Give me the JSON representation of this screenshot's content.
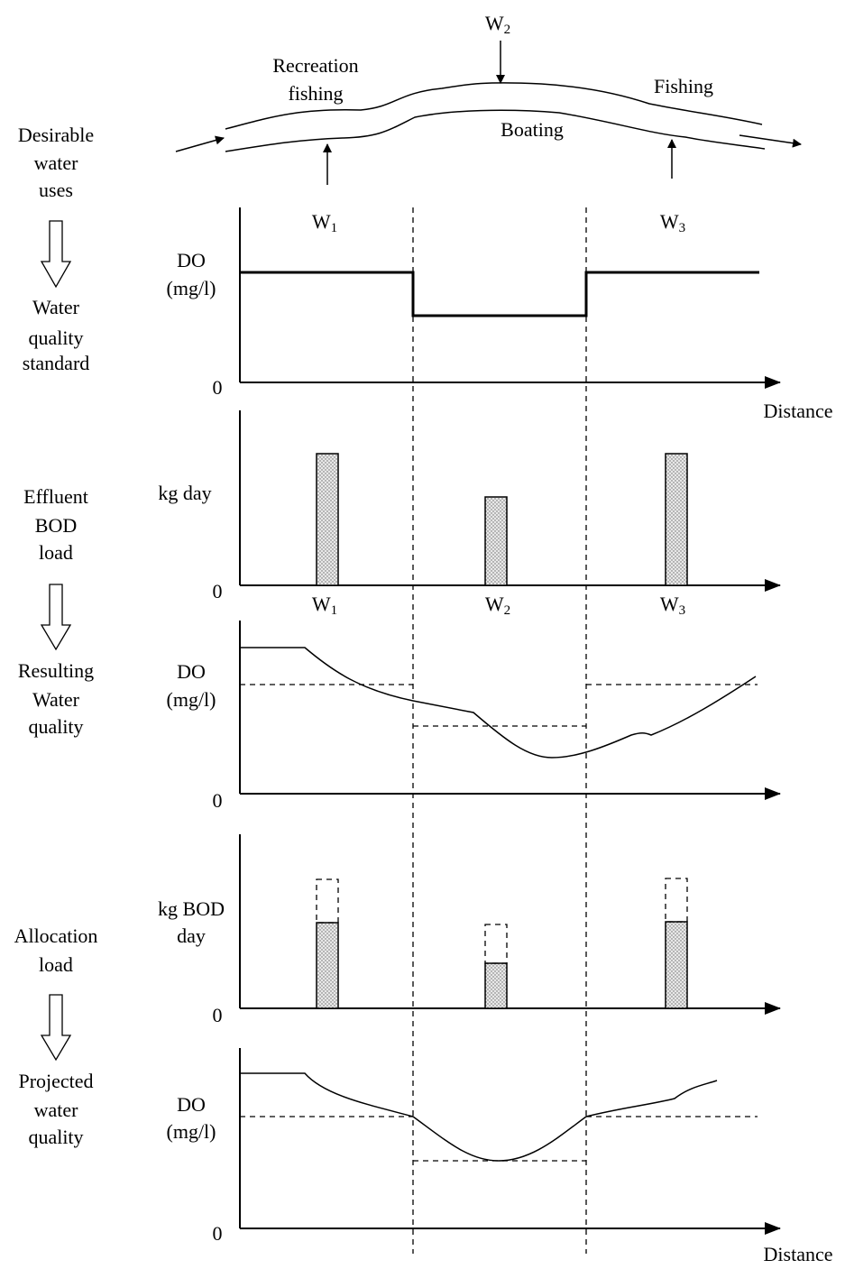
{
  "river": {
    "texts": [
      "Recreation",
      "fishing",
      "Fishing",
      "Boating"
    ],
    "w_top": {
      "letter": "W",
      "sub": "2"
    }
  },
  "stages": [
    {
      "lines": [
        "Desirable",
        "water",
        "uses"
      ]
    },
    {
      "lines": [
        "Water",
        "quality",
        "standard"
      ]
    },
    {
      "lines": [
        "Effluent",
        "BOD",
        "load"
      ]
    },
    {
      "lines": [
        "Resulting",
        "Water",
        "quality"
      ]
    },
    {
      "lines": [
        "Allocation",
        "load"
      ]
    },
    {
      "lines": [
        "Projected",
        "water",
        "quality"
      ]
    }
  ],
  "panels": [
    {
      "ylabel": [
        "DO",
        "(mg/l)"
      ],
      "origin": "0",
      "xlabel": "Distance",
      "w_labels": [
        {
          "letter": "W",
          "sub": "1"
        },
        {
          "letter": "W",
          "sub": "3"
        }
      ]
    },
    {
      "ylabel": [
        "kg day"
      ],
      "origin": "0",
      "w_labels": [
        {
          "letter": "W",
          "sub": "1"
        },
        {
          "letter": "W",
          "sub": "2"
        },
        {
          "letter": "W",
          "sub": "3"
        }
      ]
    },
    {
      "ylabel": [
        "DO",
        "(mg/l)"
      ],
      "origin": "0"
    },
    {
      "ylabel": [
        "kg BOD",
        "day"
      ],
      "origin": "0"
    },
    {
      "ylabel": [
        "DO",
        "(mg/l)"
      ],
      "origin": "0",
      "xlabel": "Distance"
    }
  ]
}
